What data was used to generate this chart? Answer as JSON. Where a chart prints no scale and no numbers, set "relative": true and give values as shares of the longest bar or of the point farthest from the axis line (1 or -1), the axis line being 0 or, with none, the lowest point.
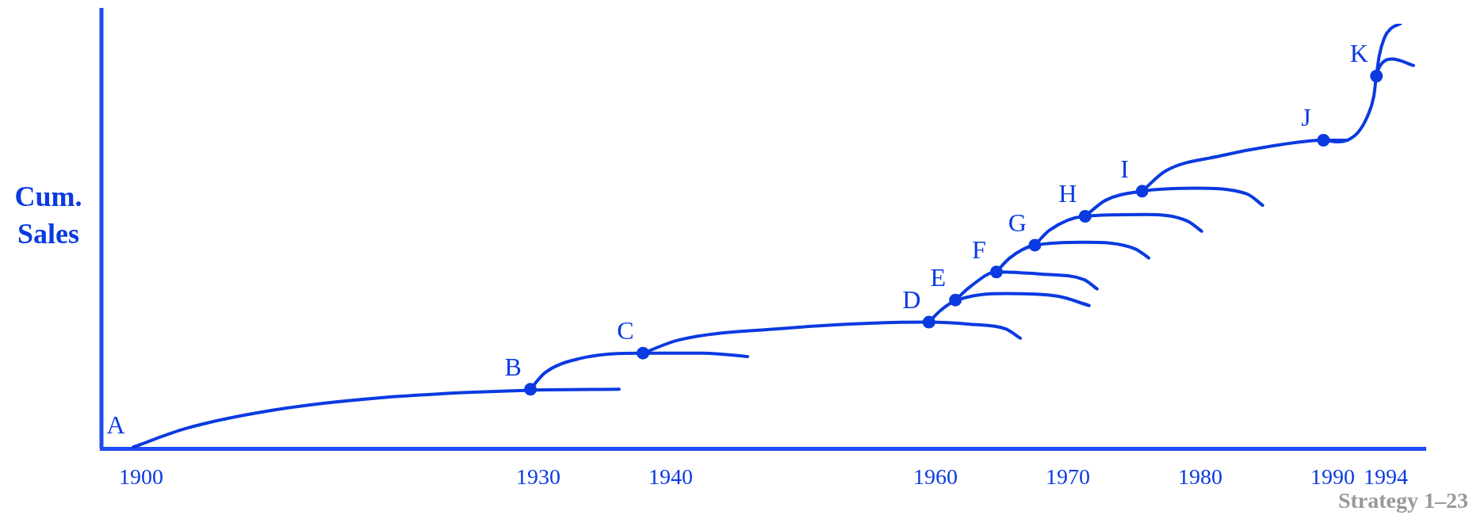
{
  "chart_data": {
    "type": "line",
    "relative": true,
    "ylabel": "Cum. Sales",
    "xlim": [
      1897,
      1997
    ],
    "xticks": [
      1900,
      1930,
      1940,
      1960,
      1970,
      1980,
      1990,
      1994
    ],
    "grid": false,
    "legend": false,
    "marker": "none",
    "line_style": "solid",
    "series": [
      {
        "color": "#0a3ae0",
        "x": [
          1899.4,
          1903.4,
          1910.2,
          1918.1,
          1929.4,
          1936.1
        ],
        "values": [
          0.004,
          0.048,
          0.092,
          0.12,
          0.138,
          0.14
        ]
      },
      {
        "color": "#0a3ae0",
        "x": [
          1929.4,
          1930.5,
          1933.1,
          1937.9,
          1942.5,
          1945.8
        ],
        "values": [
          0.14,
          0.179,
          0.212,
          0.225,
          0.225,
          0.217
        ]
      },
      {
        "color": "#0a3ae0",
        "x": [
          1937.9,
          1940.6,
          1947.9,
          1959.5,
          1962.6,
          1965.3,
          1966.4
        ],
        "values": [
          0.225,
          0.256,
          0.282,
          0.298,
          0.293,
          0.282,
          0.26
        ]
      },
      {
        "color": "#0a3ae0",
        "x": [
          1959.5,
          1960.4,
          1961.5,
          1965.3,
          1969.2,
          1971.6
        ],
        "values": [
          0.298,
          0.326,
          0.348,
          0.365,
          0.359,
          0.337
        ]
      },
      {
        "color": "#0a3ae0",
        "x": [
          1961.5,
          1962.6,
          1964.6,
          1968.0,
          1971.2,
          1972.2
        ],
        "values": [
          0.35,
          0.381,
          0.416,
          0.411,
          0.398,
          0.376
        ]
      },
      {
        "color": "#0a3ae0",
        "x": [
          1964.6,
          1965.6,
          1967.5,
          1971.2,
          1975.1,
          1976.1
        ],
        "values": [
          0.416,
          0.449,
          0.479,
          0.486,
          0.47,
          0.449
        ]
      },
      {
        "color": "#0a3ae0",
        "x": [
          1967.5,
          1968.6,
          1971.2,
          1975.9,
          1979.0,
          1980.1
        ],
        "values": [
          0.479,
          0.514,
          0.547,
          0.551,
          0.536,
          0.512
        ]
      },
      {
        "color": "#0a3ae0",
        "x": [
          1971.3,
          1972.8,
          1975.6,
          1979.8,
          1983.5,
          1984.7
        ],
        "values": [
          0.547,
          0.584,
          0.606,
          0.613,
          0.6,
          0.573
        ]
      },
      {
        "color": "#0a3ae0",
        "x": [
          1975.6,
          1977.4,
          1981.5,
          1985.5,
          1989.3,
          1991.1
        ],
        "values": [
          0.606,
          0.654,
          0.689,
          0.713,
          0.726,
          0.726
        ]
      },
      {
        "color": "#0a3ae0",
        "x": [
          1989.3,
          1990.4,
          1991.1,
          1991.9,
          1992.6,
          1993.1,
          1993.3,
          1993.6,
          1994.5,
          1996.1
        ],
        "values": [
          0.726,
          0.722,
          0.726,
          0.744,
          0.781,
          0.829,
          0.877,
          0.902,
          0.917,
          0.902
        ]
      },
      {
        "color": "#0a3ae0",
        "x": [
          1993.3,
          1993.5,
          1993.9,
          1994.4,
          1995.1
        ],
        "values": [
          0.877,
          0.923,
          0.967,
          0.989,
          1.0
        ]
      },
      {
        "type": "scatter",
        "marker": "circle",
        "color": "#0a3ae0",
        "x": [
          1929.4,
          1937.9,
          1959.5,
          1961.5,
          1964.6,
          1967.5,
          1971.3,
          1975.6,
          1989.3,
          1993.3
        ],
        "values": [
          0.14,
          0.225,
          0.298,
          0.35,
          0.416,
          0.479,
          0.547,
          0.606,
          0.726,
          0.877
        ]
      }
    ],
    "annotations": [
      {
        "text": "A",
        "x": 1899.4,
        "y": 0.004
      },
      {
        "text": "B",
        "x": 1929.4,
        "y": 0.14
      },
      {
        "text": "C",
        "x": 1937.9,
        "y": 0.225
      },
      {
        "text": "D",
        "x": 1959.5,
        "y": 0.298
      },
      {
        "text": "E",
        "x": 1961.5,
        "y": 0.35
      },
      {
        "text": "F",
        "x": 1964.6,
        "y": 0.416
      },
      {
        "text": "G",
        "x": 1967.5,
        "y": 0.479
      },
      {
        "text": "H",
        "x": 1971.3,
        "y": 0.547
      },
      {
        "text": "I",
        "x": 1975.6,
        "y": 0.606
      },
      {
        "text": "J",
        "x": 1989.3,
        "y": 0.726
      },
      {
        "text": "K",
        "x": 1993.3,
        "y": 0.877
      },
      "Strategy 1–23"
    ]
  }
}
